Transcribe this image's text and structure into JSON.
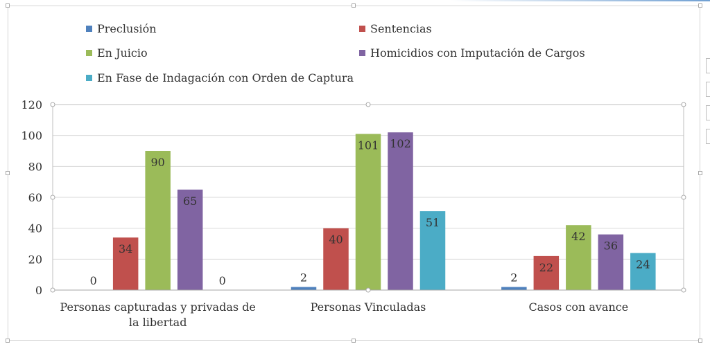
{
  "chart_data": {
    "type": "bar",
    "categories": [
      "Personas capturadas y privadas de la libertad",
      "Personas Vinculadas",
      "Casos con avance"
    ],
    "category_label_lines": [
      [
        "Personas capturadas y privadas de",
        "la libertad"
      ],
      [
        "Personas Vinculadas"
      ],
      [
        "Casos con avance"
      ]
    ],
    "series": [
      {
        "name": "Preclusión",
        "color": "#4f81bd",
        "values": [
          0,
          2,
          2
        ]
      },
      {
        "name": "Sentencias",
        "color": "#c0504d",
        "values": [
          34,
          40,
          22
        ]
      },
      {
        "name": "En Juicio",
        "color": "#9bbb59",
        "values": [
          90,
          101,
          42
        ]
      },
      {
        "name": "Homicidios con Imputación de Cargos",
        "color": "#8064a2",
        "values": [
          65,
          102,
          36
        ]
      },
      {
        "name": "En Fase de Indagación con Orden de Captura",
        "color": "#4bacc6",
        "values": [
          0,
          51,
          24
        ]
      }
    ],
    "ylim": [
      0,
      120
    ],
    "yticks": [
      0,
      20,
      40,
      60,
      80,
      100,
      120
    ],
    "grid": true,
    "legend_position": "top",
    "title": "",
    "xlabel": "",
    "ylabel": ""
  }
}
